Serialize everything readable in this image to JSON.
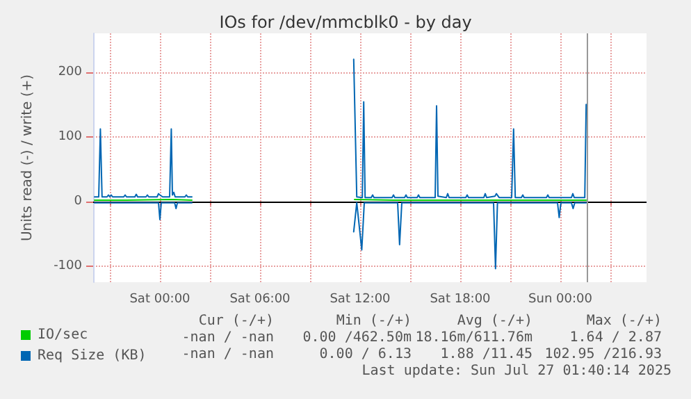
{
  "chart_data": {
    "type": "line",
    "title": "IOs for /dev/mmcblk0 - by day",
    "ylabel": "Units read (-) / write (+)",
    "xlim": [
      "2025-07-25T20:00",
      "2025-07-27T05:10"
    ],
    "xticks": [
      {
        "value": "2025-07-25T21:00",
        "label": null
      },
      {
        "value": "2025-07-26T00:00",
        "label": "Sat 00:00"
      },
      {
        "value": "2025-07-26T03:00",
        "label": null
      },
      {
        "value": "2025-07-26T06:00",
        "label": "Sat 06:00"
      },
      {
        "value": "2025-07-26T09:00",
        "label": null
      },
      {
        "value": "2025-07-26T12:00",
        "label": "Sat 12:00"
      },
      {
        "value": "2025-07-26T15:00",
        "label": null
      },
      {
        "value": "2025-07-26T18:00",
        "label": "Sat 18:00"
      },
      {
        "value": "2025-07-26T21:00",
        "label": null
      },
      {
        "value": "2025-07-27T00:00",
        "label": "Sun 00:00"
      },
      {
        "value": "2025-07-27T03:00",
        "label": null
      }
    ],
    "ylim": [
      -125,
      260
    ],
    "yticks": [
      -100,
      0,
      100,
      200
    ],
    "grid": true,
    "legend": "bottom left",
    "marker": "none",
    "line_style": "solid",
    "ref_lines": [
      {
        "axis": "y",
        "value": 0,
        "label": null,
        "color": "#000000"
      },
      {
        "axis": "x",
        "value": "2025-07-27T01:35",
        "label": null,
        "color": "#999999"
      }
    ],
    "series": [
      {
        "name": "IO/sec",
        "color": "#00cc00",
        "x": [
          "2025-07-25T20:05",
          "2025-07-25T22:00",
          "2025-07-26T00:40",
          "2025-07-26T01:55",
          "2025-07-26T06:00",
          "2025-07-26T11:40",
          "2025-07-26T14:00",
          "2025-07-26T18:00",
          "2025-07-26T21:10",
          "2025-07-27T01:33"
        ],
        "values": [
          2,
          2,
          3,
          2,
          null,
          3,
          2,
          2,
          2,
          2
        ]
      },
      {
        "name": "Req Size (KB)",
        "color": "#0066b3",
        "x": [
          "2025-07-25T20:05",
          "2025-07-25T20:20",
          "2025-07-25T20:26",
          "2025-07-25T20:32",
          "2025-07-25T20:50",
          "2025-07-25T20:55",
          "2025-07-25T21:00",
          "2025-07-25T21:05",
          "2025-07-25T21:10",
          "2025-07-25T21:50",
          "2025-07-25T21:55",
          "2025-07-25T22:00",
          "2025-07-25T22:30",
          "2025-07-25T22:35",
          "2025-07-25T22:40",
          "2025-07-25T23:10",
          "2025-07-25T23:15",
          "2025-07-25T23:20",
          "2025-07-25T23:50",
          "2025-07-25T23:55",
          "2025-07-26T00:00",
          "2025-07-26T00:10",
          "2025-07-26T00:35",
          "2025-07-26T00:41",
          "2025-07-26T00:45",
          "2025-07-26T00:50",
          "2025-07-26T00:55",
          "2025-07-26T01:30",
          "2025-07-26T01:35",
          "2025-07-26T01:40",
          "2025-07-26T01:55",
          "2025-07-26T06:00",
          "2025-07-26T11:37",
          "2025-07-26T11:48",
          "2025-07-26T12:08",
          "2025-07-26T12:13",
          "2025-07-26T12:18",
          "2025-07-26T12:40",
          "2025-07-26T12:45",
          "2025-07-26T12:50",
          "2025-07-26T13:55",
          "2025-07-26T14:00",
          "2025-07-26T14:05",
          "2025-07-26T14:40",
          "2025-07-26T14:45",
          "2025-07-26T14:50",
          "2025-07-26T15:25",
          "2025-07-26T15:30",
          "2025-07-26T15:35",
          "2025-07-26T16:30",
          "2025-07-26T16:35",
          "2025-07-26T16:40",
          "2025-07-26T17:10",
          "2025-07-26T17:15",
          "2025-07-26T17:20",
          "2025-07-26T18:20",
          "2025-07-26T18:25",
          "2025-07-26T18:30",
          "2025-07-26T19:25",
          "2025-07-26T19:30",
          "2025-07-26T19:35",
          "2025-07-26T20:05",
          "2025-07-26T20:10",
          "2025-07-26T20:20",
          "2025-07-26T21:05",
          "2025-07-26T21:12",
          "2025-07-26T21:18",
          "2025-07-26T21:40",
          "2025-07-26T21:45",
          "2025-07-26T21:50",
          "2025-07-26T23:10",
          "2025-07-26T23:15",
          "2025-07-26T23:20",
          "2025-07-27T00:40",
          "2025-07-27T00:45",
          "2025-07-27T00:50",
          "2025-07-27T01:28",
          "2025-07-27T01:33"
        ],
        "values": [
          7,
          7,
          112,
          7,
          7,
          10,
          7,
          10,
          7,
          7,
          10,
          7,
          7,
          11,
          7,
          7,
          10,
          7,
          7,
          12,
          10,
          7,
          7,
          112,
          10,
          14,
          7,
          7,
          10,
          7,
          7,
          null,
          220,
          7,
          6,
          154,
          6,
          6,
          10,
          6,
          6,
          10,
          6,
          6,
          10,
          6,
          6,
          10,
          6,
          6,
          148,
          8,
          6,
          12,
          6,
          6,
          10,
          6,
          6,
          12,
          6,
          8,
          12,
          6,
          6,
          112,
          6,
          6,
          10,
          6,
          6,
          10,
          6,
          6,
          12,
          6,
          6,
          150
        ]
      },
      {
        "color": "#0066b3",
        "x": [
          "2025-07-25T20:05",
          "2025-07-25T23:55",
          "2025-07-26T00:00",
          "2025-07-26T00:05",
          "2025-07-26T00:53",
          "2025-07-26T00:58",
          "2025-07-26T01:03",
          "2025-07-26T01:55",
          "2025-07-26T06:00",
          "2025-07-26T11:37",
          "2025-07-26T11:48",
          "2025-07-26T12:06",
          "2025-07-26T12:15",
          "2025-07-26T14:15",
          "2025-07-26T14:22",
          "2025-07-26T14:30",
          "2025-07-26T20:00",
          "2025-07-26T20:07",
          "2025-07-26T20:14",
          "2025-07-26T23:50",
          "2025-07-26T23:56",
          "2025-07-27T00:02",
          "2025-07-27T00:40",
          "2025-07-27T00:46",
          "2025-07-27T00:52",
          "2025-07-27T01:33"
        ],
        "values": [
          -2,
          -2,
          -28,
          -2,
          -2,
          -11,
          -2,
          -2,
          null,
          -47,
          -2,
          -75,
          -2,
          -2,
          -67,
          -2,
          -2,
          -104,
          -2,
          -2,
          -25,
          -2,
          -2,
          -11,
          -2,
          -2
        ]
      }
    ],
    "annotations": [
      "Cur (-/+)",
      "Min (-/+)",
      "Avg (-/+)",
      "Max (-/+)",
      "-nan / -nan",
      "0.00 /462.50m",
      "18.16m/611.76m",
      "1.64 / 2.87",
      "-nan / -nan",
      "0.00 / 6.13",
      "1.88 /11.45",
      "102.95 /216.93",
      "Last update: Sun Jul 27 01:40:14 2025"
    ]
  }
}
